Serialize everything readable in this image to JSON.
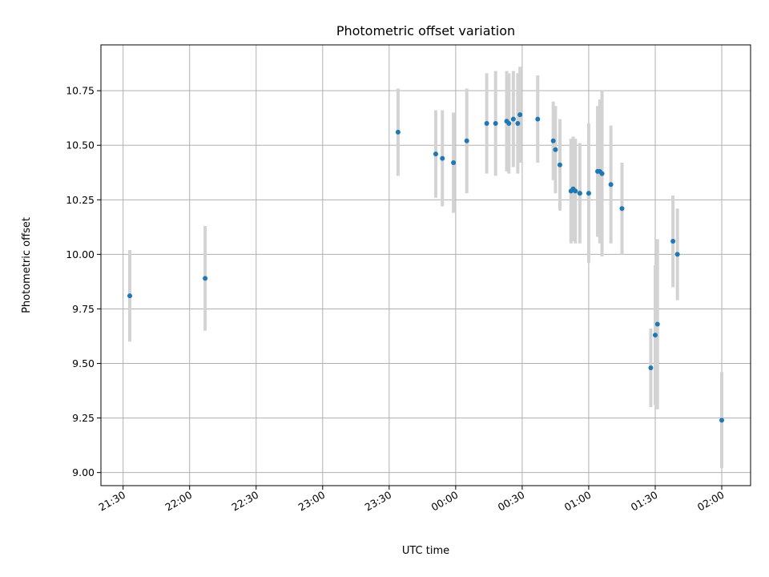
{
  "chart_data": {
    "type": "scatter",
    "title": "Photometric offset variation",
    "xlabel": "UTC time",
    "ylabel": "Photometric offset",
    "xlim": [
      "21:20",
      "02:13"
    ],
    "ylim": [
      8.94,
      10.96
    ],
    "grid": true,
    "x_ticks": [
      "21:30",
      "22:00",
      "22:30",
      "23:00",
      "23:30",
      "00:00",
      "00:30",
      "01:00",
      "01:30",
      "02:00"
    ],
    "y_ticks": [
      "9.00",
      "9.25",
      "9.50",
      "9.75",
      "10.00",
      "10.25",
      "10.50",
      "10.75"
    ],
    "colors": {
      "point": "#1f77b4",
      "error_bar": "#d3d3d3"
    },
    "series": [
      {
        "points": [
          {
            "x": "21:33",
            "y": 9.81,
            "err": 0.21
          },
          {
            "x": "22:07",
            "y": 9.89,
            "err": 0.24
          },
          {
            "x": "23:34",
            "y": 10.56,
            "err": 0.2
          },
          {
            "x": "23:51",
            "y": 10.46,
            "err": 0.2
          },
          {
            "x": "23:54",
            "y": 10.44,
            "err": 0.22
          },
          {
            "x": "23:59",
            "y": 10.42,
            "err": 0.23
          },
          {
            "x": "00:05",
            "y": 10.52,
            "err": 0.24
          },
          {
            "x": "00:14",
            "y": 10.6,
            "err": 0.23
          },
          {
            "x": "00:18",
            "y": 10.6,
            "err": 0.24
          },
          {
            "x": "00:23",
            "y": 10.61,
            "err": 0.23
          },
          {
            "x": "00:24",
            "y": 10.6,
            "err": 0.23
          },
          {
            "x": "00:26",
            "y": 10.62,
            "err": 0.22
          },
          {
            "x": "00:28",
            "y": 10.6,
            "err": 0.23
          },
          {
            "x": "00:29",
            "y": 10.64,
            "err": 0.22
          },
          {
            "x": "00:37",
            "y": 10.62,
            "err": 0.2
          },
          {
            "x": "00:44",
            "y": 10.52,
            "err": 0.18
          },
          {
            "x": "00:45",
            "y": 10.48,
            "err": 0.2
          },
          {
            "x": "00:47",
            "y": 10.41,
            "err": 0.21
          },
          {
            "x": "00:52",
            "y": 10.29,
            "err": 0.24
          },
          {
            "x": "00:53",
            "y": 10.3,
            "err": 0.24
          },
          {
            "x": "00:54",
            "y": 10.29,
            "err": 0.24
          },
          {
            "x": "00:56",
            "y": 10.28,
            "err": 0.23
          },
          {
            "x": "01:00",
            "y": 10.28,
            "err": 0.32
          },
          {
            "x": "01:04",
            "y": 10.38,
            "err": 0.3
          },
          {
            "x": "01:05",
            "y": 10.38,
            "err": 0.33
          },
          {
            "x": "01:06",
            "y": 10.37,
            "err": 0.38
          },
          {
            "x": "01:10",
            "y": 10.32,
            "err": 0.27
          },
          {
            "x": "01:15",
            "y": 10.21,
            "err": 0.21
          },
          {
            "x": "01:28",
            "y": 9.48,
            "err": 0.18
          },
          {
            "x": "01:30",
            "y": 9.63,
            "err": 0.32
          },
          {
            "x": "01:31",
            "y": 9.68,
            "err": 0.39
          },
          {
            "x": "01:38",
            "y": 10.06,
            "err": 0.21
          },
          {
            "x": "01:40",
            "y": 10.0,
            "err": 0.21
          },
          {
            "x": "02:00",
            "y": 9.24,
            "err": 0.22
          }
        ]
      }
    ]
  }
}
